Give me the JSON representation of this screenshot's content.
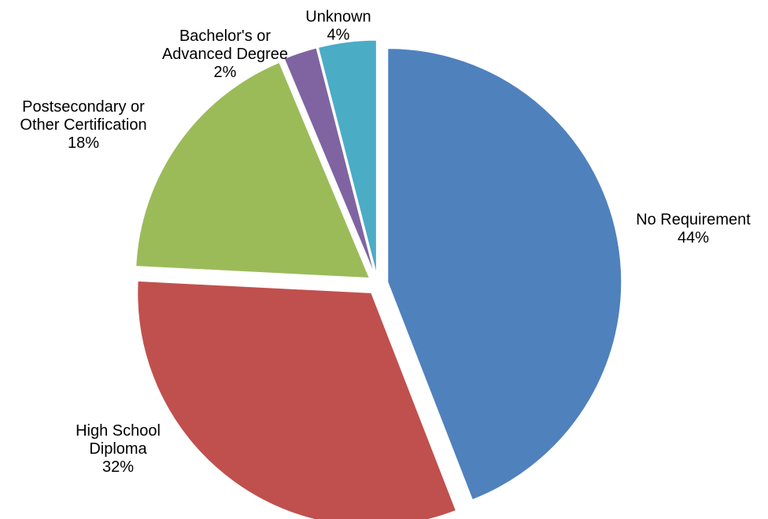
{
  "chart_data": {
    "type": "pie",
    "slices": [
      {
        "name": "No Requirement",
        "name_lines": [
          "No Requirement"
        ],
        "percent_label": "44%",
        "value": 44.1,
        "color": "#4F81BD"
      },
      {
        "name": "High School Diploma",
        "name_lines": [
          "High School",
          "Diploma"
        ],
        "percent_label": "32%",
        "value": 31.7,
        "color": "#C0504D"
      },
      {
        "name": "Postsecondary or Other Certification",
        "name_lines": [
          "Postsecondary or",
          "Other Certification"
        ],
        "percent_label": "18%",
        "value": 17.9,
        "color": "#9BBB59"
      },
      {
        "name": "Bachelor's or Advanced Degree",
        "name_lines": [
          "Bachelor's or",
          "Advanced Degree"
        ],
        "percent_label": "2%",
        "value": 2.3,
        "color": "#8064A2"
      },
      {
        "name": "Unknown",
        "name_lines": [
          "Unknown"
        ],
        "percent_label": "4%",
        "value": 4.0,
        "color": "#4BACC6"
      }
    ],
    "start_angle_deg": 0,
    "direction": "clockwise",
    "exploded": true,
    "data_labels": "outside"
  }
}
